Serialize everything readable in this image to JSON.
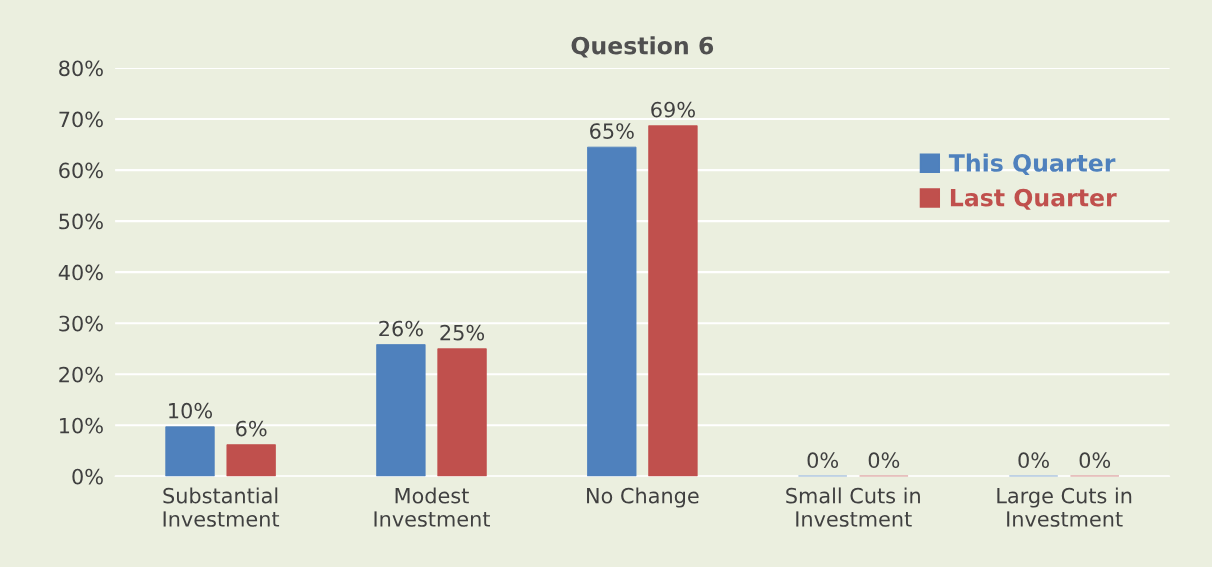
{
  "chart_data": {
    "type": "bar",
    "title": "Question 6",
    "categories": [
      "Substantial\nInvestment",
      "Modest\nInvestment",
      "No Change",
      "Small Cuts in\nInvestment",
      "Large Cuts in\nInvestment"
    ],
    "series": [
      {
        "name": "This Quarter",
        "color": "#4f81bd",
        "values": [
          9.7,
          25.8,
          64.5,
          0,
          0
        ],
        "value_labels": [
          "10%",
          "26%",
          "65%",
          "0%",
          "0%"
        ]
      },
      {
        "name": "Last Quarter",
        "color": "#c0504d",
        "values": [
          6.2,
          25,
          68.7,
          0,
          0
        ],
        "value_labels": [
          "6%",
          "25%",
          "69%",
          "0%",
          "0%"
        ]
      }
    ],
    "ylim": [
      0,
      80
    ],
    "yticks": [
      {
        "value": 0,
        "label": "0%"
      },
      {
        "value": 10,
        "label": "10%"
      },
      {
        "value": 20,
        "label": "20%"
      },
      {
        "value": 30,
        "label": "30%"
      },
      {
        "value": 40,
        "label": "40%"
      },
      {
        "value": 50,
        "label": "50%"
      },
      {
        "value": 60,
        "label": "60%"
      },
      {
        "value": 70,
        "label": "70%"
      },
      {
        "value": 80,
        "label": "80%"
      }
    ],
    "grid": "y",
    "legend": "right"
  }
}
